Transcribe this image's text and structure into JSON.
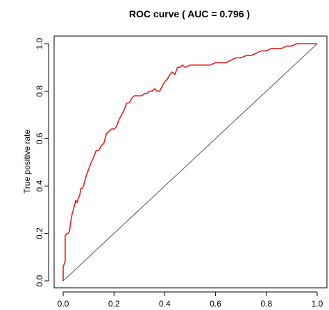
{
  "chart_data": {
    "type": "line",
    "title": "ROC curve ( AUC =  0.796 )",
    "xlabel": "",
    "ylabel": "True positive rate",
    "xlim": [
      0.0,
      1.0
    ],
    "ylim": [
      0.0,
      1.0
    ],
    "x_ticks": [
      "0.0",
      "0.2",
      "0.4",
      "0.6",
      "0.8",
      "1.0"
    ],
    "y_ticks": [
      "0.0",
      "0.2",
      "0.4",
      "0.6",
      "0.8",
      "1.0"
    ],
    "grid": false,
    "legend": "none",
    "colors": {
      "roc": "#e0201b",
      "diagonal": "#555555",
      "axis": "#000000"
    },
    "series": [
      {
        "x": [
          0.0,
          0.0,
          0.008,
          0.008,
          0.015,
          0.02,
          0.025,
          0.03,
          0.035,
          0.04,
          0.045,
          0.05,
          0.055,
          0.06,
          0.065,
          0.07,
          0.075,
          0.08,
          0.09,
          0.1,
          0.11,
          0.12,
          0.13,
          0.14,
          0.15,
          0.16,
          0.17,
          0.18,
          0.19,
          0.2,
          0.21,
          0.22,
          0.23,
          0.24,
          0.25,
          0.26,
          0.27,
          0.28,
          0.29,
          0.3,
          0.31,
          0.32,
          0.33,
          0.34,
          0.35,
          0.36,
          0.37,
          0.38,
          0.39,
          0.4,
          0.41,
          0.42,
          0.43,
          0.44,
          0.45,
          0.46,
          0.47,
          0.48,
          0.5,
          0.52,
          0.54,
          0.56,
          0.58,
          0.6,
          0.62,
          0.64,
          0.66,
          0.68,
          0.7,
          0.72,
          0.74,
          0.76,
          0.78,
          0.8,
          0.82,
          0.84,
          0.86,
          0.88,
          0.9,
          0.92,
          0.94,
          0.96,
          0.98,
          1.0
        ],
        "y": [
          0.0,
          0.06,
          0.08,
          0.19,
          0.2,
          0.2,
          0.21,
          0.25,
          0.28,
          0.3,
          0.32,
          0.34,
          0.33,
          0.35,
          0.36,
          0.39,
          0.39,
          0.4,
          0.44,
          0.47,
          0.5,
          0.52,
          0.55,
          0.55,
          0.57,
          0.58,
          0.62,
          0.63,
          0.64,
          0.64,
          0.65,
          0.68,
          0.7,
          0.72,
          0.75,
          0.75,
          0.77,
          0.78,
          0.78,
          0.78,
          0.78,
          0.79,
          0.79,
          0.8,
          0.8,
          0.81,
          0.8,
          0.8,
          0.82,
          0.84,
          0.85,
          0.87,
          0.88,
          0.87,
          0.9,
          0.9,
          0.91,
          0.9,
          0.91,
          0.91,
          0.91,
          0.91,
          0.91,
          0.92,
          0.92,
          0.92,
          0.93,
          0.94,
          0.94,
          0.95,
          0.95,
          0.96,
          0.97,
          0.97,
          0.98,
          0.98,
          0.98,
          0.99,
          0.99,
          1.0,
          1.0,
          1.0,
          1.0,
          1.0
        ]
      }
    ]
  }
}
